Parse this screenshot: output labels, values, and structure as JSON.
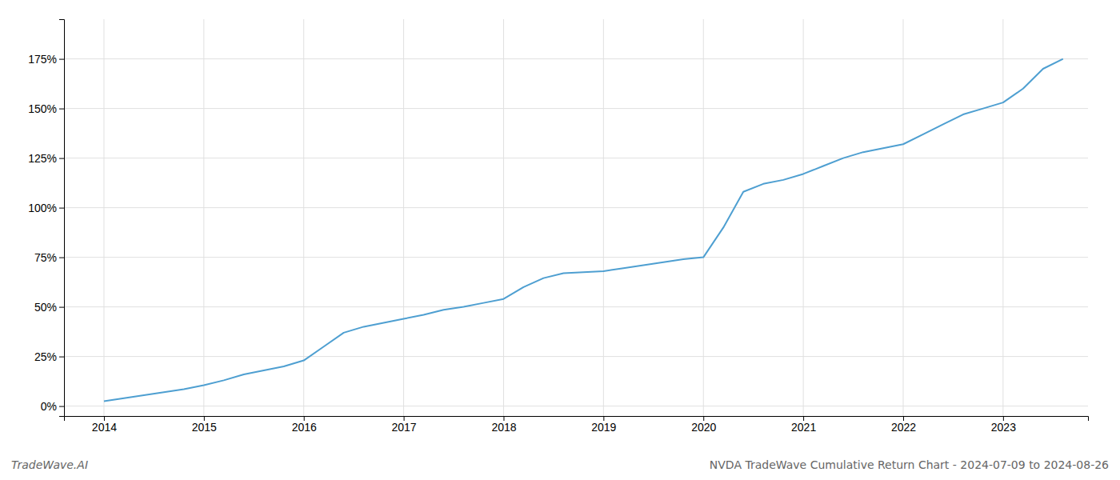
{
  "chart_data": {
    "type": "line",
    "title": "NVDA TradeWave Cumulative Return Chart - 2024-07-09 to 2024-08-26",
    "annotations": [
      "TradeWave.AI"
    ],
    "x": [
      2014.0,
      2014.2,
      2014.4,
      2014.6,
      2014.8,
      2015.0,
      2015.2,
      2015.4,
      2015.6,
      2015.8,
      2016.0,
      2016.2,
      2016.4,
      2016.6,
      2016.8,
      2017.0,
      2017.2,
      2017.4,
      2017.6,
      2017.8,
      2018.0,
      2018.2,
      2018.4,
      2018.6,
      2018.8,
      2019.0,
      2019.2,
      2019.4,
      2019.6,
      2019.8,
      2020.0,
      2020.2,
      2020.4,
      2020.6,
      2020.8,
      2021.0,
      2021.2,
      2021.4,
      2021.6,
      2021.8,
      2022.0,
      2022.2,
      2022.4,
      2022.6,
      2022.8,
      2023.0,
      2023.2,
      2023.4,
      2023.6
    ],
    "values": [
      2.5,
      4.0,
      5.5,
      7.0,
      8.5,
      10.5,
      13.0,
      16.0,
      18.0,
      20.0,
      23.0,
      30.0,
      37.0,
      40.0,
      42.0,
      44.0,
      46.0,
      48.5,
      50.0,
      52.0,
      54.0,
      60.0,
      64.5,
      67.0,
      67.5,
      68.0,
      69.5,
      71.0,
      72.5,
      74.0,
      75.0,
      90.0,
      108.0,
      112.0,
      114.0,
      117.0,
      121.0,
      125.0,
      128.0,
      130.0,
      132.0,
      137.0,
      142.0,
      147.0,
      150.0,
      153.0,
      160.0,
      170.0,
      175.0
    ],
    "color": "#4e9fd1",
    "xlim": [
      2013.6,
      2023.85
    ],
    "xticks": [
      2014,
      2015,
      2016,
      2017,
      2018,
      2019,
      2020,
      2021,
      2022,
      2023
    ],
    "ylim": [
      -5,
      195
    ],
    "yticks": [
      {
        "value": 0,
        "label": "0%"
      },
      {
        "value": 25,
        "label": "25%"
      },
      {
        "value": 50,
        "label": "50%"
      },
      {
        "value": 75,
        "label": "75%"
      },
      {
        "value": 100,
        "label": "100%"
      },
      {
        "value": 125,
        "label": "125%"
      },
      {
        "value": 150,
        "label": "150%"
      },
      {
        "value": 175,
        "label": "175%"
      }
    ],
    "grid": true
  }
}
